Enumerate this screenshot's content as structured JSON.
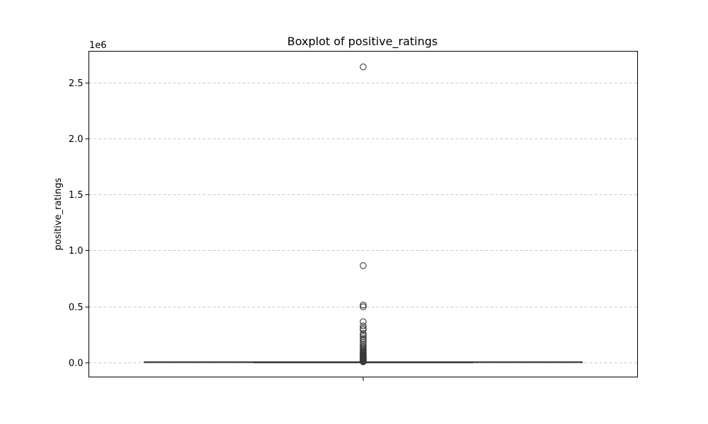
{
  "chart_data": {
    "type": "boxplot",
    "title": "Boxplot of positive_ratings",
    "xlabel": "",
    "ylabel": "positive_ratings",
    "y_offset_label": "1e6",
    "ylim": [
      -130000,
      2780000
    ],
    "y_ticks": [
      0,
      500000,
      1000000,
      1500000,
      2000000,
      2500000
    ],
    "y_tick_labels": [
      "0.0",
      "0.5",
      "1.0",
      "1.5",
      "2.0",
      "2.5"
    ],
    "grid": {
      "axis": "y",
      "style": "dashed",
      "color": "#c8c8c8"
    },
    "box": {
      "whisker_low": 0,
      "q1": 0,
      "median": 0,
      "q3": 1000,
      "whisker_high": 5000
    },
    "outliers": [
      2640000,
      865000,
      512000,
      497000,
      364000,
      327000,
      306000,
      292000,
      257000,
      246000,
      231000,
      213000,
      198000,
      180000,
      166000,
      150000,
      138000,
      127000,
      117000,
      108000,
      100000,
      93000,
      86000,
      79000,
      73000,
      67000,
      61000,
      56000,
      51000,
      46000,
      42000,
      38000,
      34000,
      30000,
      26000,
      22000,
      19000,
      16000,
      13000,
      11000,
      9000,
      7500,
      6000
    ],
    "colors": {
      "line": "#3a3a3a",
      "box_fill": "#3a76af"
    }
  }
}
